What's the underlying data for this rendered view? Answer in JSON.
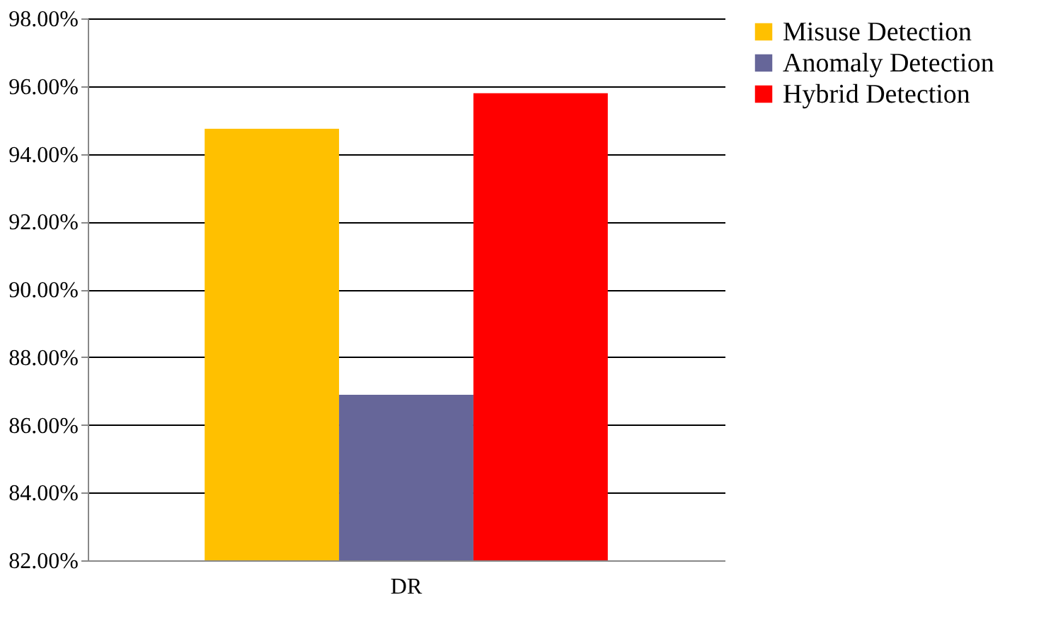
{
  "chart_data": {
    "type": "bar",
    "categories": [
      "DR"
    ],
    "series": [
      {
        "name": "Misuse Detection",
        "color": "#ffc000",
        "values": [
          94.74
        ]
      },
      {
        "name": "Anomaly Detection",
        "color": "#666699",
        "values": [
          86.89
        ]
      },
      {
        "name": "Hybrid Detection",
        "color": "#ff0000",
        "values": [
          95.79
        ]
      }
    ],
    "ylim": [
      82,
      98
    ],
    "yticks": [
      {
        "value": 82,
        "label": "82.00%"
      },
      {
        "value": 84,
        "label": "84.00%"
      },
      {
        "value": 86,
        "label": "86.00%"
      },
      {
        "value": 88,
        "label": "88.00%"
      },
      {
        "value": 90,
        "label": "90.00%"
      },
      {
        "value": 92,
        "label": "92.00%"
      },
      {
        "value": 94,
        "label": "94.00%"
      },
      {
        "value": 96,
        "label": "96.00%"
      },
      {
        "value": 98,
        "label": "98.00%"
      }
    ],
    "grid": "y",
    "legend": "right"
  }
}
